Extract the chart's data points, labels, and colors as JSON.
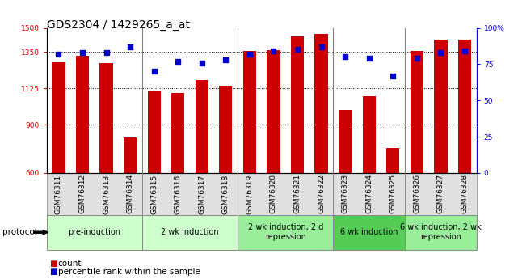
{
  "title": "GDS2304 / 1429265_a_at",
  "samples": [
    "GSM76311",
    "GSM76312",
    "GSM76313",
    "GSM76314",
    "GSM76315",
    "GSM76316",
    "GSM76317",
    "GSM76318",
    "GSM76319",
    "GSM76320",
    "GSM76321",
    "GSM76322",
    "GSM76323",
    "GSM76324",
    "GSM76325",
    "GSM76326",
    "GSM76327",
    "GSM76328"
  ],
  "counts": [
    1285,
    1325,
    1280,
    820,
    1110,
    1095,
    1175,
    1140,
    1355,
    1360,
    1445,
    1460,
    990,
    1075,
    755,
    1355,
    1425,
    1425
  ],
  "percentiles": [
    82,
    83,
    83,
    87,
    70,
    77,
    76,
    78,
    82,
    84,
    85,
    87,
    80,
    79,
    67,
    79,
    83,
    84
  ],
  "ymin": 600,
  "ymax": 1500,
  "yticks": [
    600,
    900,
    1125,
    1350,
    1500
  ],
  "ytick_labels": [
    "600",
    "900",
    "1125",
    "1350",
    "1500"
  ],
  "right_yticks": [
    0,
    25,
    50,
    75,
    100
  ],
  "right_ytick_labels": [
    "0",
    "25",
    "50",
    "75",
    "100%"
  ],
  "bar_color": "#cc0000",
  "dot_color": "#0000cc",
  "bar_width": 0.55,
  "groups": [
    {
      "label": "pre-induction",
      "start": 0,
      "end": 3,
      "color": "#ccffcc"
    },
    {
      "label": "2 wk induction",
      "start": 4,
      "end": 7,
      "color": "#ccffcc"
    },
    {
      "label": "2 wk induction, 2 d\nrepression",
      "start": 8,
      "end": 11,
      "color": "#99ee99"
    },
    {
      "label": "6 wk induction",
      "start": 12,
      "end": 14,
      "color": "#55cc55"
    },
    {
      "label": "6 wk induction, 2 wk\nrepression",
      "start": 15,
      "end": 17,
      "color": "#99ee99"
    }
  ],
  "protocol_label": "protocol",
  "legend_count_label": "count",
  "legend_percentile_label": "percentile rank within the sample",
  "title_fontsize": 10,
  "tick_fontsize": 6.5,
  "label_fontsize": 7.5,
  "group_label_fontsize": 7,
  "background_color": "#ffffff",
  "plot_bg_color": "#ffffff",
  "separators": [
    3.5,
    7.5,
    11.5,
    14.5
  ],
  "grid_lines": [
    900,
    1125,
    1350
  ]
}
